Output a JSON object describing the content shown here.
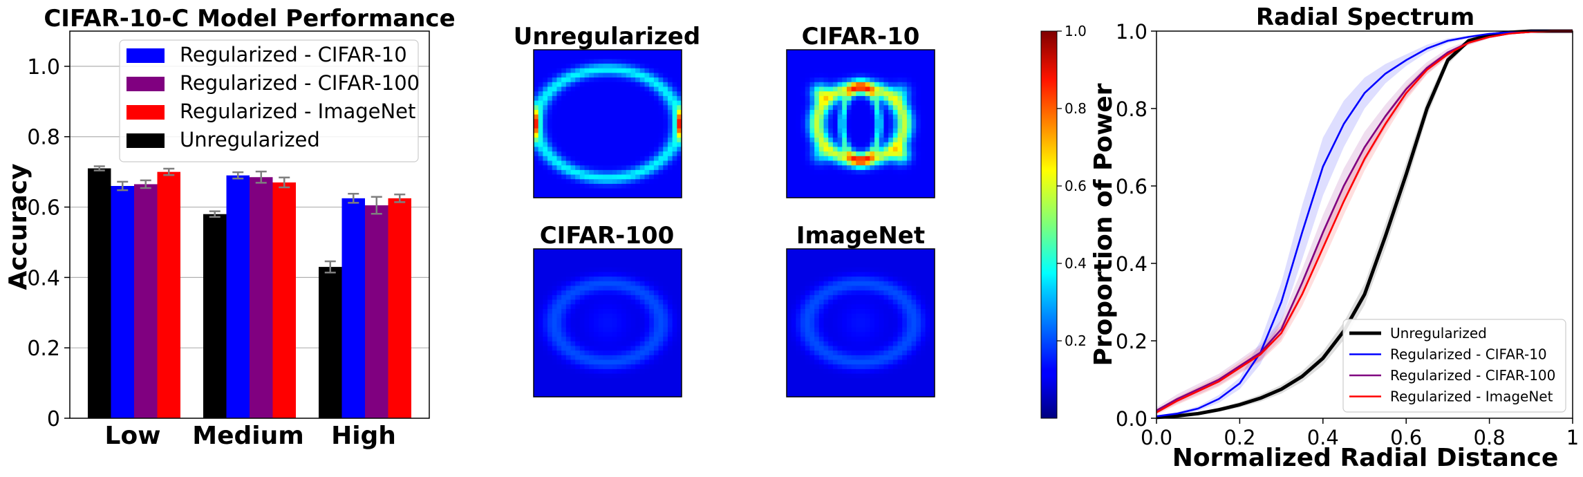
{
  "figure": {
    "panel_titles": [
      "CIFAR-10-C Model Performance",
      "Unregularized",
      "CIFAR-10",
      "CIFAR-100",
      "ImageNet",
      "Radial Spectrum"
    ]
  },
  "chart_data": [
    {
      "type": "bar",
      "title": "CIFAR-10-C Model Performance",
      "xlabel": "",
      "ylabel": "Accuracy",
      "ylim": [
        0,
        1.1
      ],
      "yticks": [
        0,
        0.2,
        0.4,
        0.6,
        0.8,
        1.0
      ],
      "ytick_labels": [
        "0",
        "0.2",
        "0.4",
        "0.6",
        "0.8",
        "1.0"
      ],
      "grid": "horizontal",
      "legend": "top-right",
      "categories": [
        "Low",
        "Medium",
        "High"
      ],
      "series": [
        {
          "name": "Unregularized",
          "color": "#000000",
          "values": [
            0.71,
            0.58,
            0.43
          ],
          "err": [
            0.006,
            0.008,
            0.016
          ]
        },
        {
          "name": "Regularized - CIFAR-10",
          "color": "#0000ff",
          "values": [
            0.66,
            0.69,
            0.625
          ],
          "err": [
            0.012,
            0.009,
            0.013
          ]
        },
        {
          "name": "Regularized - CIFAR-100",
          "color": "#800080",
          "values": [
            0.665,
            0.685,
            0.605
          ],
          "err": [
            0.011,
            0.016,
            0.024
          ]
        },
        {
          "name": "Regularized - ImageNet",
          "color": "#ff0000",
          "values": [
            0.7,
            0.67,
            0.625
          ],
          "err": [
            0.009,
            0.014,
            0.011
          ]
        }
      ],
      "legend_order": [
        "Regularized - CIFAR-10",
        "Regularized - CIFAR-100",
        "Regularized - ImageNet",
        "Unregularized"
      ]
    },
    {
      "type": "heatmap",
      "colormap": "jet",
      "panels": [
        {
          "title": "Unregularized",
          "pattern": "ring",
          "peak": 0.9
        },
        {
          "title": "CIFAR-10",
          "pattern": "double_ring",
          "peak": 1.0
        },
        {
          "title": "CIFAR-100",
          "pattern": "faint_ring",
          "peak": 0.25
        },
        {
          "title": "ImageNet",
          "pattern": "faint_ring",
          "peak": 0.27
        }
      ],
      "colorbar": {
        "ticks": [
          0.2,
          0.4,
          0.6,
          0.8,
          1.0
        ],
        "tick_labels": [
          "0.2",
          "0.4",
          "0.6",
          "0.8",
          "1.0"
        ]
      }
    },
    {
      "type": "line",
      "title": "Radial Spectrum",
      "xlabel": "Normalized Radial Distance",
      "ylabel": "Proportion of Power",
      "xlim": [
        0,
        1
      ],
      "ylim": [
        0,
        1
      ],
      "xticks": [
        0,
        0.2,
        0.4,
        0.6,
        0.8,
        1
      ],
      "xtick_labels": [
        "0.0",
        "0.2",
        "0.4",
        "0.6",
        "0.8",
        "1"
      ],
      "yticks": [
        0,
        0.2,
        0.4,
        0.6,
        0.8,
        1.0
      ],
      "ytick_labels": [
        "0.0",
        "0.2",
        "0.4",
        "0.6",
        "0.8",
        "1.0"
      ],
      "legend": "lower-right",
      "series": [
        {
          "name": "Unregularized",
          "color": "#000000",
          "x": [
            0,
            0.05,
            0.1,
            0.15,
            0.2,
            0.25,
            0.3,
            0.35,
            0.4,
            0.45,
            0.5,
            0.55,
            0.6,
            0.65,
            0.7,
            0.75,
            0.8,
            0.85,
            0.9,
            0.95,
            1
          ],
          "y": [
            0.002,
            0.006,
            0.012,
            0.022,
            0.035,
            0.052,
            0.075,
            0.108,
            0.155,
            0.225,
            0.32,
            0.47,
            0.63,
            0.8,
            0.925,
            0.975,
            0.99,
            0.997,
            1.0,
            1.0,
            1.0
          ],
          "band": [
            0.002,
            0.003,
            0.004,
            0.005,
            0.007,
            0.009,
            0.011,
            0.014,
            0.018,
            0.023,
            0.028,
            0.032,
            0.03,
            0.022,
            0.012,
            0.006,
            0.003,
            0.001,
            0,
            0,
            0
          ]
        },
        {
          "name": "Regularized - CIFAR-10",
          "color": "#0000ff",
          "x": [
            0,
            0.05,
            0.1,
            0.15,
            0.2,
            0.25,
            0.3,
            0.35,
            0.4,
            0.45,
            0.5,
            0.55,
            0.6,
            0.65,
            0.7,
            0.75,
            0.8,
            0.85,
            0.9,
            0.95,
            1
          ],
          "y": [
            0.005,
            0.012,
            0.025,
            0.05,
            0.09,
            0.17,
            0.3,
            0.48,
            0.65,
            0.76,
            0.84,
            0.89,
            0.925,
            0.955,
            0.975,
            0.985,
            0.993,
            0.997,
            1.0,
            1.0,
            1.0
          ],
          "band": [
            0.002,
            0.004,
            0.006,
            0.01,
            0.015,
            0.03,
            0.05,
            0.07,
            0.075,
            0.06,
            0.04,
            0.025,
            0.015,
            0.01,
            0.006,
            0.004,
            0.002,
            0.001,
            0,
            0,
            0
          ]
        },
        {
          "name": "Regularized - CIFAR-100",
          "color": "#800080",
          "x": [
            0,
            0.05,
            0.1,
            0.15,
            0.2,
            0.25,
            0.3,
            0.35,
            0.4,
            0.45,
            0.5,
            0.55,
            0.6,
            0.65,
            0.7,
            0.75,
            0.8,
            0.85,
            0.9,
            0.95,
            1
          ],
          "y": [
            0.02,
            0.05,
            0.075,
            0.1,
            0.135,
            0.17,
            0.23,
            0.35,
            0.48,
            0.6,
            0.7,
            0.78,
            0.85,
            0.905,
            0.945,
            0.97,
            0.985,
            0.994,
            0.998,
            1.0,
            1.0
          ],
          "band": [
            0.008,
            0.012,
            0.014,
            0.015,
            0.017,
            0.02,
            0.025,
            0.035,
            0.045,
            0.045,
            0.04,
            0.03,
            0.022,
            0.015,
            0.01,
            0.006,
            0.004,
            0.002,
            0.001,
            0,
            0
          ]
        },
        {
          "name": "Regularized - ImageNet",
          "color": "#ff0000",
          "x": [
            0,
            0.05,
            0.1,
            0.15,
            0.2,
            0.25,
            0.3,
            0.35,
            0.4,
            0.45,
            0.5,
            0.55,
            0.6,
            0.65,
            0.7,
            0.75,
            0.8,
            0.85,
            0.9,
            0.95,
            1
          ],
          "y": [
            0.015,
            0.045,
            0.07,
            0.095,
            0.13,
            0.165,
            0.22,
            0.32,
            0.44,
            0.56,
            0.67,
            0.76,
            0.84,
            0.9,
            0.94,
            0.97,
            0.985,
            0.994,
            0.998,
            1.0,
            1.0
          ],
          "band": [
            0.006,
            0.01,
            0.012,
            0.013,
            0.015,
            0.018,
            0.022,
            0.03,
            0.035,
            0.035,
            0.03,
            0.025,
            0.018,
            0.012,
            0.008,
            0.005,
            0.003,
            0.002,
            0.001,
            0,
            0
          ]
        }
      ]
    }
  ]
}
